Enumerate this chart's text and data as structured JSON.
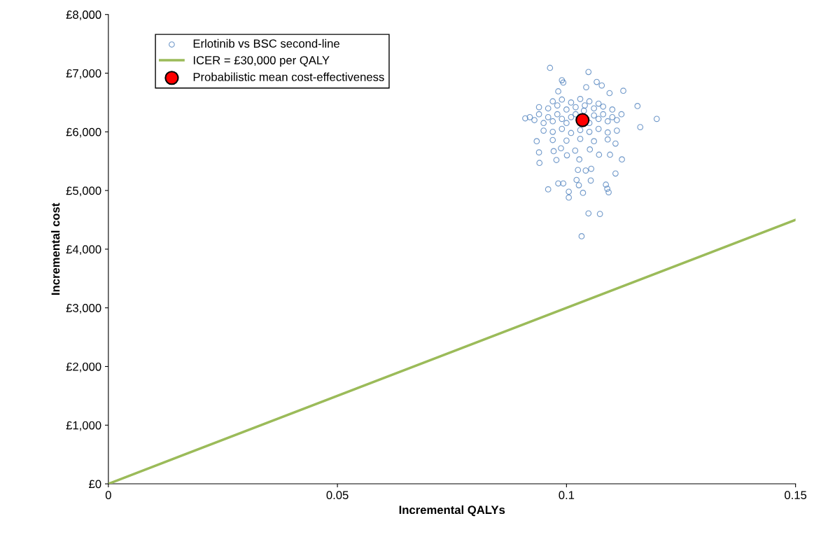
{
  "chart_data": {
    "type": "scatter",
    "xlabel": "Incremental QALYs",
    "ylabel": "Incremental cost",
    "xlim": [
      0,
      0.15
    ],
    "ylim": [
      0,
      8000
    ],
    "xticks": [
      0,
      0.05,
      0.1,
      0.15
    ],
    "yticks": [
      {
        "value": 0,
        "label": "£0"
      },
      {
        "value": 1000,
        "label": "£1,000"
      },
      {
        "value": 2000,
        "label": "£2,000"
      },
      {
        "value": 3000,
        "label": "£3,000"
      },
      {
        "value": 4000,
        "label": "£4,000"
      },
      {
        "value": 5000,
        "label": "£5,000"
      },
      {
        "value": 6000,
        "label": "£6,000"
      },
      {
        "value": 7000,
        "label": "£7,000"
      },
      {
        "value": 8000,
        "label": "£8,000"
      }
    ],
    "grid": false,
    "legend": "top left",
    "series": [
      {
        "name": "Erlotinib vs BSC second-line",
        "marker": "circle",
        "color": "#4f81bd",
        "x": [
          0.0964,
          0.1048,
          0.099,
          0.0993,
          0.1066,
          0.1077,
          0.1043,
          0.1124,
          0.1094,
          0.0982,
          0.1197,
          0.091,
          0.1161,
          0.1155,
          0.092,
          0.093,
          0.094,
          0.095,
          0.096,
          0.097,
          0.098,
          0.099,
          0.1,
          0.101,
          0.102,
          0.1038,
          0.105,
          0.106,
          0.107,
          0.108,
          0.109,
          0.11,
          0.111,
          0.112,
          0.094,
          0.096,
          0.098,
          0.1,
          0.102,
          0.104,
          0.106,
          0.108,
          0.11,
          0.097,
          0.099,
          0.101,
          0.103,
          0.105,
          0.107,
          0.095,
          0.097,
          0.099,
          0.101,
          0.103,
          0.105,
          0.107,
          0.109,
          0.111,
          0.097,
          0.1,
          0.103,
          0.106,
          0.109,
          0.0935,
          0.094,
          0.0941,
          0.0972,
          0.0978,
          0.0988,
          0.1001,
          0.1019,
          0.1028,
          0.1051,
          0.1071,
          0.1095,
          0.1121,
          0.1107,
          0.1025,
          0.1042,
          0.1054,
          0.1022,
          0.1053,
          0.1107,
          0.0982,
          0.0993,
          0.096,
          0.1005,
          0.1036,
          0.1089,
          0.1086,
          0.1092,
          0.1027,
          0.1005,
          0.1048,
          0.1073,
          0.1033
        ],
        "values": [
          7090,
          7020,
          6880,
          6840,
          6850,
          6790,
          6760,
          6700,
          6660,
          6690,
          6220,
          6230,
          6080,
          6440,
          6250,
          6200,
          6300,
          6150,
          6250,
          6180,
          6300,
          6220,
          6150,
          6250,
          6300,
          6360,
          6150,
          6280,
          6220,
          6300,
          6180,
          6250,
          6200,
          6300,
          6420,
          6400,
          6450,
          6380,
          6420,
          6450,
          6400,
          6430,
          6380,
          6520,
          6550,
          6500,
          6560,
          6520,
          6480,
          6020,
          6000,
          6050,
          5980,
          6030,
          6000,
          6050,
          5990,
          6020,
          5860,
          5850,
          5880,
          5840,
          5870,
          5840,
          5650,
          5470,
          5670,
          5520,
          5720,
          5600,
          5680,
          5530,
          5700,
          5610,
          5610,
          5530,
          5800,
          5350,
          5340,
          5370,
          5180,
          5170,
          5290,
          5120,
          5120,
          5020,
          4980,
          4960,
          5030,
          5100,
          4970,
          5090,
          4880,
          4610,
          4600,
          4220
        ]
      },
      {
        "name": "ICER = £30,000 per QALY",
        "type": "line",
        "color": "#9bbb59",
        "marker": "none",
        "line_style": "solid",
        "x": [
          0,
          0.15
        ],
        "values": [
          0,
          4500
        ]
      },
      {
        "name": "Probabilistic mean cost-effectiveness",
        "marker": "circle",
        "color": "#ff0000",
        "x": [
          0.1035
        ],
        "values": [
          6200
        ]
      }
    ]
  }
}
